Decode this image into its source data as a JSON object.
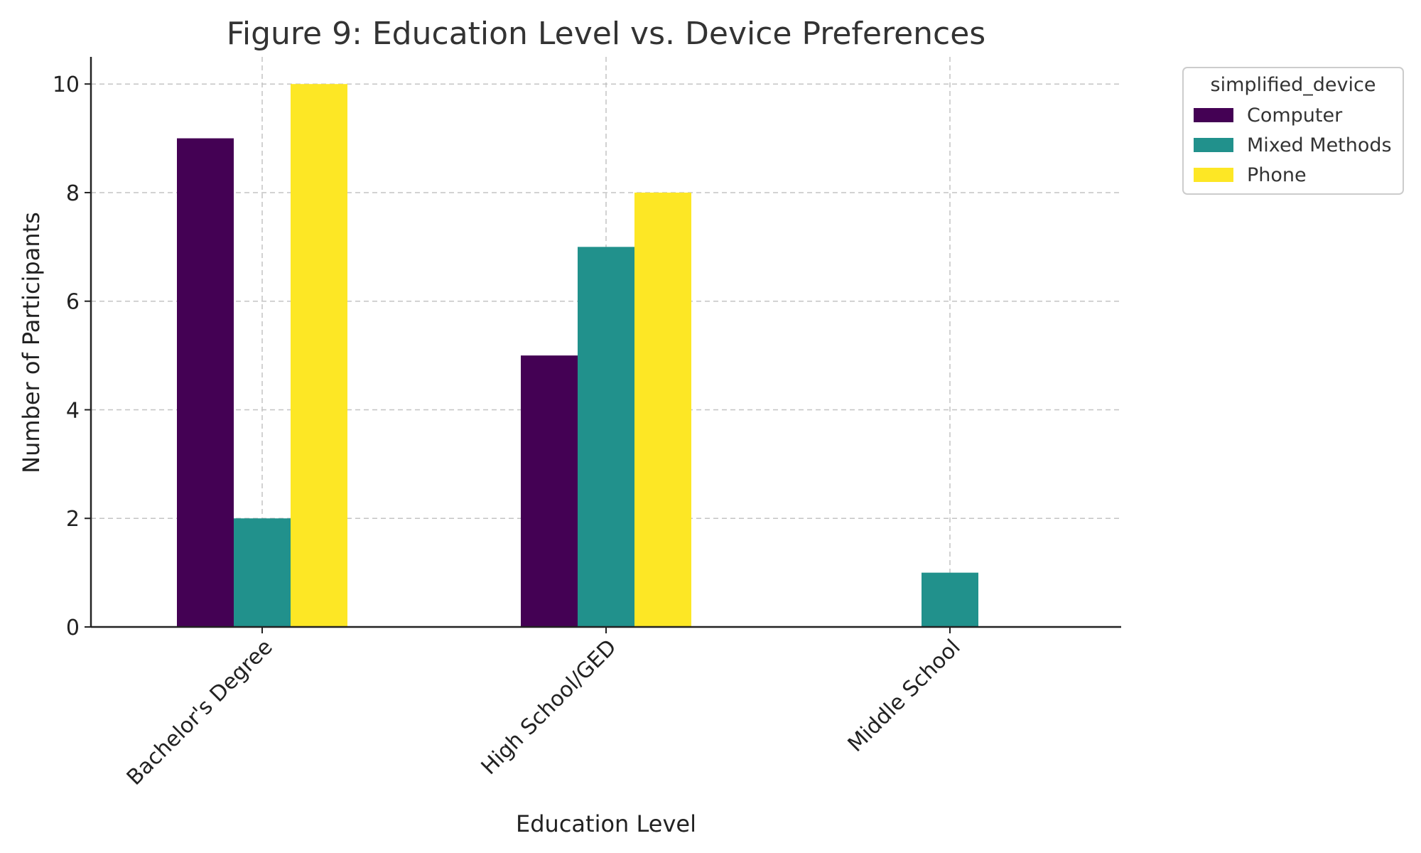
{
  "chart_data": {
    "type": "bar",
    "title": "Figure 9: Education Level vs. Device Preferences",
    "xlabel": "Education Level",
    "ylabel": "Number of Participants",
    "categories": [
      "Bachelor's Degree",
      "High School/GED",
      "Middle School"
    ],
    "series": [
      {
        "name": "Computer",
        "color": "#440154",
        "values": [
          9,
          5,
          0
        ]
      },
      {
        "name": "Mixed Methods",
        "color": "#21918c",
        "values": [
          2,
          7,
          1
        ]
      },
      {
        "name": "Phone",
        "color": "#fde725",
        "values": [
          10,
          8,
          0
        ]
      }
    ],
    "ylim": [
      0,
      10.5
    ],
    "yticks": [
      0,
      2,
      4,
      6,
      8,
      10
    ],
    "grid": true,
    "legend": {
      "title": "simplified_device",
      "placement": "outside-top-right"
    }
  }
}
